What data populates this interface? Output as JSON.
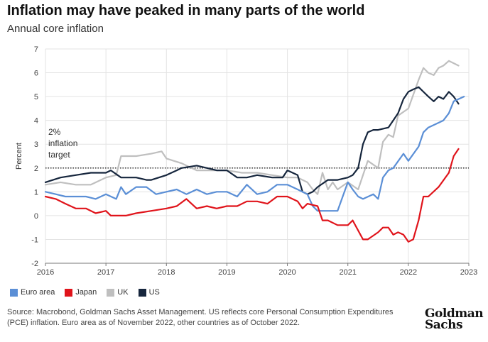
{
  "title": "Inflation may have peaked in many parts of the world",
  "subtitle": "Annual core inflation",
  "source": "Source: Macrobond, Goldman Sachs Asset Management. US reflects core Personal Consumption Expenditures (PCE) inflation. Euro area as of November 2022, other countries as of October 2022.",
  "logo": {
    "line1": "Goldman",
    "line2": "Sachs"
  },
  "colors": {
    "euro": "#5b8fd6",
    "japan": "#e0141b",
    "uk": "#bfbfbf",
    "us": "#16263d",
    "grid": "#e3e3e3",
    "axis": "#777777",
    "target": "#222222"
  },
  "chart_data": {
    "type": "line",
    "ylabel": "Percent",
    "ylim": [
      -2,
      7
    ],
    "yticks": [
      "-2",
      "-1",
      "0",
      "1",
      "2",
      "3",
      "4",
      "5",
      "6",
      "7"
    ],
    "xlim": [
      2016,
      2023
    ],
    "xticks": [
      "2016",
      "2017",
      "2018",
      "2019",
      "2020",
      "2021",
      "2022",
      "2023"
    ],
    "grid": true,
    "legend_position": "bottom",
    "annotation": {
      "lines": [
        "2%",
        "inflation",
        "target"
      ],
      "y": 2
    },
    "series": [
      {
        "name": "UK",
        "color": "#bfbfbf",
        "x": [
          2016.0,
          2016.25,
          2016.5,
          2016.75,
          2017.0,
          2017.17,
          2017.25,
          2017.5,
          2017.75,
          2017.92,
          2018.0,
          2018.25,
          2018.5,
          2018.75,
          2019.0,
          2019.25,
          2019.5,
          2019.75,
          2020.0,
          2020.17,
          2020.33,
          2020.42,
          2020.5,
          2020.58,
          2020.67,
          2020.75,
          2020.83,
          2021.0,
          2021.17,
          2021.33,
          2021.5,
          2021.58,
          2021.67,
          2021.75,
          2021.83,
          2022.0,
          2022.17,
          2022.25,
          2022.33,
          2022.42,
          2022.5,
          2022.58,
          2022.67,
          2022.75,
          2022.83
        ],
        "y": [
          1.3,
          1.4,
          1.3,
          1.3,
          1.6,
          1.7,
          2.5,
          2.5,
          2.6,
          2.7,
          2.4,
          2.2,
          1.9,
          1.9,
          1.9,
          1.8,
          1.8,
          1.7,
          1.6,
          1.6,
          1.4,
          1.1,
          0.9,
          1.8,
          1.1,
          1.4,
          1.1,
          1.4,
          1.1,
          2.3,
          2.0,
          3.1,
          3.4,
          3.3,
          4.2,
          4.5,
          5.7,
          6.2,
          6.0,
          5.9,
          6.2,
          6.3,
          6.5,
          6.4,
          6.3
        ]
      },
      {
        "name": "US",
        "color": "#16263d",
        "x": [
          2016.0,
          2016.25,
          2016.5,
          2016.75,
          2017.0,
          2017.08,
          2017.25,
          2017.5,
          2017.67,
          2017.75,
          2018.0,
          2018.17,
          2018.25,
          2018.5,
          2018.67,
          2018.83,
          2019.0,
          2019.17,
          2019.33,
          2019.5,
          2019.75,
          2019.92,
          2020.0,
          2020.17,
          2020.25,
          2020.33,
          2020.42,
          2020.5,
          2020.67,
          2020.83,
          2021.0,
          2021.08,
          2021.17,
          2021.25,
          2021.33,
          2021.42,
          2021.5,
          2021.67,
          2021.83,
          2021.92,
          2022.0,
          2022.08,
          2022.17,
          2022.25,
          2022.33,
          2022.42,
          2022.5,
          2022.58,
          2022.67,
          2022.75,
          2022.83
        ],
        "y": [
          1.4,
          1.6,
          1.7,
          1.8,
          1.8,
          1.9,
          1.6,
          1.6,
          1.5,
          1.5,
          1.7,
          1.9,
          2.0,
          2.1,
          2.0,
          1.9,
          1.9,
          1.6,
          1.6,
          1.7,
          1.6,
          1.6,
          1.9,
          1.7,
          1.0,
          0.9,
          1.0,
          1.2,
          1.5,
          1.5,
          1.6,
          1.7,
          2.0,
          3.0,
          3.5,
          3.6,
          3.6,
          3.7,
          4.3,
          4.9,
          5.2,
          5.3,
          5.4,
          5.2,
          5.0,
          4.8,
          5.0,
          4.9,
          5.2,
          5.0,
          4.7
        ]
      },
      {
        "name": "Euro area",
        "color": "#5b8fd6",
        "x": [
          2016.0,
          2016.17,
          2016.33,
          2016.5,
          2016.67,
          2016.83,
          2017.0,
          2017.17,
          2017.25,
          2017.33,
          2017.5,
          2017.67,
          2017.83,
          2018.0,
          2018.17,
          2018.33,
          2018.5,
          2018.67,
          2018.83,
          2019.0,
          2019.17,
          2019.33,
          2019.5,
          2019.67,
          2019.83,
          2020.0,
          2020.17,
          2020.33,
          2020.42,
          2020.5,
          2020.58,
          2020.67,
          2020.83,
          2021.0,
          2021.08,
          2021.17,
          2021.25,
          2021.42,
          2021.5,
          2021.58,
          2021.67,
          2021.75,
          2021.92,
          2022.0,
          2022.17,
          2022.25,
          2022.33,
          2022.5,
          2022.58,
          2022.67,
          2022.75,
          2022.92
        ],
        "y": [
          1.0,
          0.9,
          0.8,
          0.8,
          0.8,
          0.7,
          0.9,
          0.7,
          1.2,
          0.9,
          1.2,
          1.2,
          0.9,
          1.0,
          1.1,
          0.9,
          1.1,
          0.9,
          1.0,
          1.0,
          0.8,
          1.3,
          0.9,
          1.0,
          1.3,
          1.3,
          1.1,
          0.9,
          0.4,
          0.2,
          0.2,
          0.2,
          0.2,
          1.4,
          1.1,
          0.8,
          0.7,
          0.9,
          0.7,
          1.6,
          1.9,
          2.0,
          2.6,
          2.3,
          2.9,
          3.5,
          3.7,
          3.9,
          4.0,
          4.3,
          4.8,
          5.0
        ]
      },
      {
        "name": "Japan",
        "color": "#e0141b",
        "x": [
          2016.0,
          2016.17,
          2016.33,
          2016.5,
          2016.67,
          2016.83,
          2017.0,
          2017.08,
          2017.33,
          2017.5,
          2017.75,
          2018.0,
          2018.17,
          2018.33,
          2018.5,
          2018.67,
          2018.83,
          2019.0,
          2019.17,
          2019.33,
          2019.5,
          2019.67,
          2019.83,
          2020.0,
          2020.17,
          2020.25,
          2020.33,
          2020.5,
          2020.58,
          2020.67,
          2020.83,
          2021.0,
          2021.08,
          2021.25,
          2021.33,
          2021.5,
          2021.58,
          2021.67,
          2021.75,
          2021.83,
          2021.92,
          2022.0,
          2022.08,
          2022.17,
          2022.25,
          2022.33,
          2022.5,
          2022.67,
          2022.75,
          2022.83
        ],
        "y": [
          0.8,
          0.7,
          0.5,
          0.3,
          0.3,
          0.1,
          0.2,
          0.0,
          0.0,
          0.1,
          0.2,
          0.3,
          0.4,
          0.7,
          0.3,
          0.4,
          0.3,
          0.4,
          0.4,
          0.6,
          0.6,
          0.5,
          0.8,
          0.8,
          0.6,
          0.3,
          0.5,
          0.4,
          -0.2,
          -0.2,
          -0.4,
          -0.4,
          -0.2,
          -1.0,
          -1.0,
          -0.7,
          -0.5,
          -0.5,
          -0.8,
          -0.7,
          -0.8,
          -1.1,
          -1.0,
          -0.2,
          0.8,
          0.8,
          1.2,
          1.8,
          2.5,
          2.8
        ]
      }
    ]
  },
  "legend": [
    {
      "label": "Euro area",
      "color": "#5b8fd6"
    },
    {
      "label": "Japan",
      "color": "#e0141b"
    },
    {
      "label": "UK",
      "color": "#bfbfbf"
    },
    {
      "label": "US",
      "color": "#16263d"
    }
  ]
}
